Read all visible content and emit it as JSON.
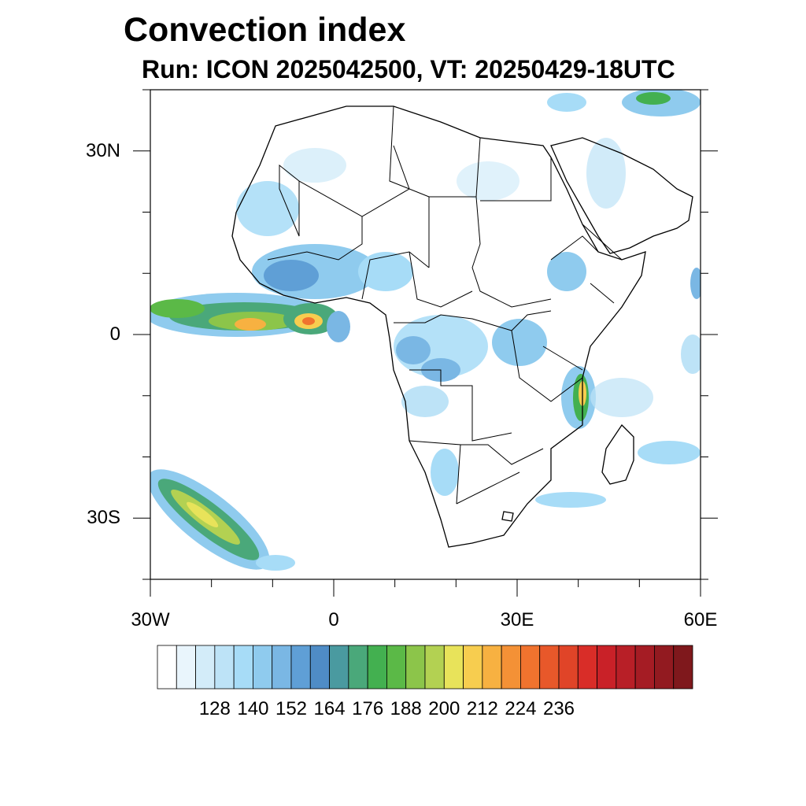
{
  "title": "Convection index",
  "subtitle": "Run: ICON 2025042500,  VT: 20250429-18UTC",
  "map": {
    "lon_range": [
      -30,
      60
    ],
    "lat_range": [
      -40,
      40
    ],
    "lat_ticks": [
      {
        "value": 30,
        "label": "30N"
      },
      {
        "value": 0,
        "label": "0"
      },
      {
        "value": -30,
        "label": "30S"
      }
    ],
    "lon_ticks": [
      {
        "value": -30,
        "label": "30W"
      },
      {
        "value": 0,
        "label": "0"
      },
      {
        "value": 30,
        "label": "30E"
      },
      {
        "value": 60,
        "label": "60E"
      }
    ]
  },
  "colorbar": {
    "labels": [
      "128",
      "140",
      "152",
      "164",
      "176",
      "188",
      "200",
      "212",
      "224",
      "236"
    ],
    "colors": [
      "#ffffff",
      "#e9f5fc",
      "#d3ecf9",
      "#bde3f7",
      "#a7dcf7",
      "#8fcbee",
      "#7ab7e4",
      "#5f9fd6",
      "#4f8cc6",
      "#4a9aa0",
      "#4aa87a",
      "#43b050",
      "#5bb947",
      "#8cc54a",
      "#b3d152",
      "#e8e35a",
      "#f7cd4f",
      "#f7b141",
      "#f49136",
      "#f0732e",
      "#e8582a",
      "#e04428",
      "#d92d28",
      "#c92128",
      "#b81f27",
      "#a51c24",
      "#921a20",
      "#7f181c"
    ]
  }
}
